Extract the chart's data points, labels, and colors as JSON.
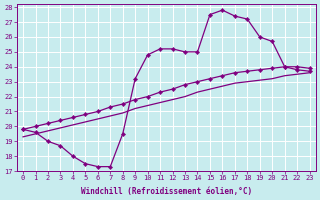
{
  "xlabel": "Windchill (Refroidissement éolien,°C)",
  "line_color": "#800080",
  "bg_color": "#c8ecee",
  "grid_color": "#b0d8da",
  "xlim": [
    -0.5,
    23.5
  ],
  "ylim": [
    17,
    28.2
  ],
  "yticks": [
    17,
    18,
    19,
    20,
    21,
    22,
    23,
    24,
    25,
    26,
    27,
    28
  ],
  "xticks": [
    0,
    1,
    2,
    3,
    4,
    5,
    6,
    7,
    8,
    9,
    10,
    11,
    12,
    13,
    14,
    15,
    16,
    17,
    18,
    19,
    20,
    21,
    22,
    23
  ],
  "tick_fontsize": 5.0,
  "label_fontsize": 5.5,
  "linewidth": 0.9,
  "marker_size": 2.2,
  "series1_x": [
    0,
    1,
    2,
    3,
    4,
    5,
    6,
    7,
    8,
    9,
    10,
    11,
    12,
    13,
    14,
    15,
    16,
    17,
    18,
    19,
    20,
    21,
    22,
    23
  ],
  "series1_y": [
    19.8,
    19.6,
    19.0,
    18.7,
    18.0,
    17.5,
    17.3,
    17.3,
    19.5,
    23.2,
    24.8,
    25.2,
    25.2,
    25.0,
    25.0,
    27.5,
    27.8,
    27.4,
    27.2,
    26.0,
    25.7,
    24.0,
    23.8,
    23.7
  ],
  "series2_x": [
    0,
    1,
    2,
    3,
    4,
    5,
    6,
    7,
    8,
    9,
    10,
    11,
    12,
    13,
    14,
    15,
    16,
    17,
    18,
    19,
    20,
    21,
    22,
    23
  ],
  "series2_y": [
    19.8,
    20.0,
    20.2,
    20.4,
    20.6,
    20.8,
    21.0,
    21.3,
    21.5,
    21.8,
    22.0,
    22.3,
    22.5,
    22.8,
    23.0,
    23.2,
    23.4,
    23.6,
    23.7,
    23.8,
    23.9,
    24.0,
    24.0,
    23.9
  ],
  "series3_x": [
    0,
    1,
    2,
    3,
    4,
    5,
    6,
    7,
    8,
    9,
    10,
    11,
    12,
    13,
    14,
    15,
    16,
    17,
    18,
    19,
    20,
    21,
    22,
    23
  ],
  "series3_y": [
    19.3,
    19.5,
    19.7,
    19.9,
    20.1,
    20.3,
    20.5,
    20.7,
    20.9,
    21.2,
    21.4,
    21.6,
    21.8,
    22.0,
    22.3,
    22.5,
    22.7,
    22.9,
    23.0,
    23.1,
    23.2,
    23.4,
    23.5,
    23.6
  ]
}
